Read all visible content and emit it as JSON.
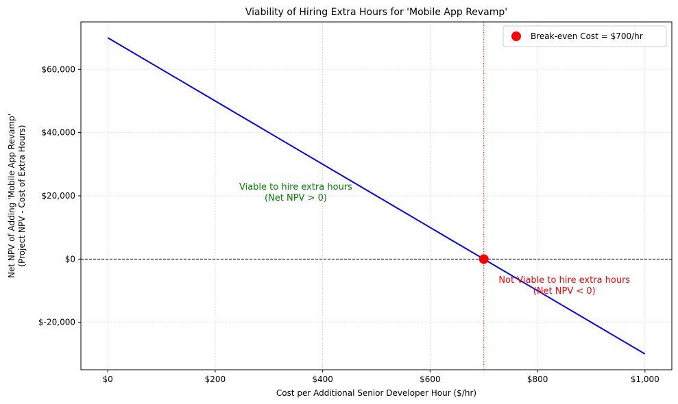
{
  "chart_data": {
    "type": "line",
    "title": "Viability of Hiring Extra Hours for 'Mobile App Revamp'",
    "xlabel": "Cost per Additional Senior Developer Hour ($/hr)",
    "ylabel_lines": [
      "Net NPV of Adding 'Mobile App Revamp'",
      "(Project NPV - Cost of Extra Hours)"
    ],
    "xlim": [
      -50,
      1050
    ],
    "ylim": [
      -35000,
      75000
    ],
    "x_ticks": [
      {
        "value": 0,
        "label": "$0"
      },
      {
        "value": 200,
        "label": "$200"
      },
      {
        "value": 400,
        "label": "$400"
      },
      {
        "value": 600,
        "label": "$600"
      },
      {
        "value": 800,
        "label": "$800"
      },
      {
        "value": 1000,
        "label": "$1,000"
      }
    ],
    "y_ticks": [
      {
        "value": -20000,
        "label": "$-20,000"
      },
      {
        "value": 0,
        "label": "$0"
      },
      {
        "value": 20000,
        "label": "$20,000"
      },
      {
        "value": 40000,
        "label": "$40,000"
      },
      {
        "value": 60000,
        "label": "$60,000"
      }
    ],
    "grid": true,
    "series": [
      {
        "x": [
          0,
          1000
        ],
        "y": [
          70000,
          -30000
        ],
        "color": "#0000ff"
      }
    ],
    "break_even": {
      "x": 700,
      "y": 0,
      "color": "#ff0000",
      "label": "Break-even Cost = $700/hr"
    },
    "zero_line": {
      "y": 0,
      "color": "#000000"
    },
    "legend_position": "top-right",
    "annotations": [
      {
        "lines": [
          "Viable to hire extra hours",
          "(Net NPV > 0)"
        ],
        "x": 350,
        "y": 22000,
        "color": "#008000"
      },
      {
        "lines": [
          "Not Viable to hire extra hours",
          "(Net NPV < 0)"
        ],
        "x": 850,
        "y": -7500,
        "color": "#ff0000"
      }
    ]
  }
}
